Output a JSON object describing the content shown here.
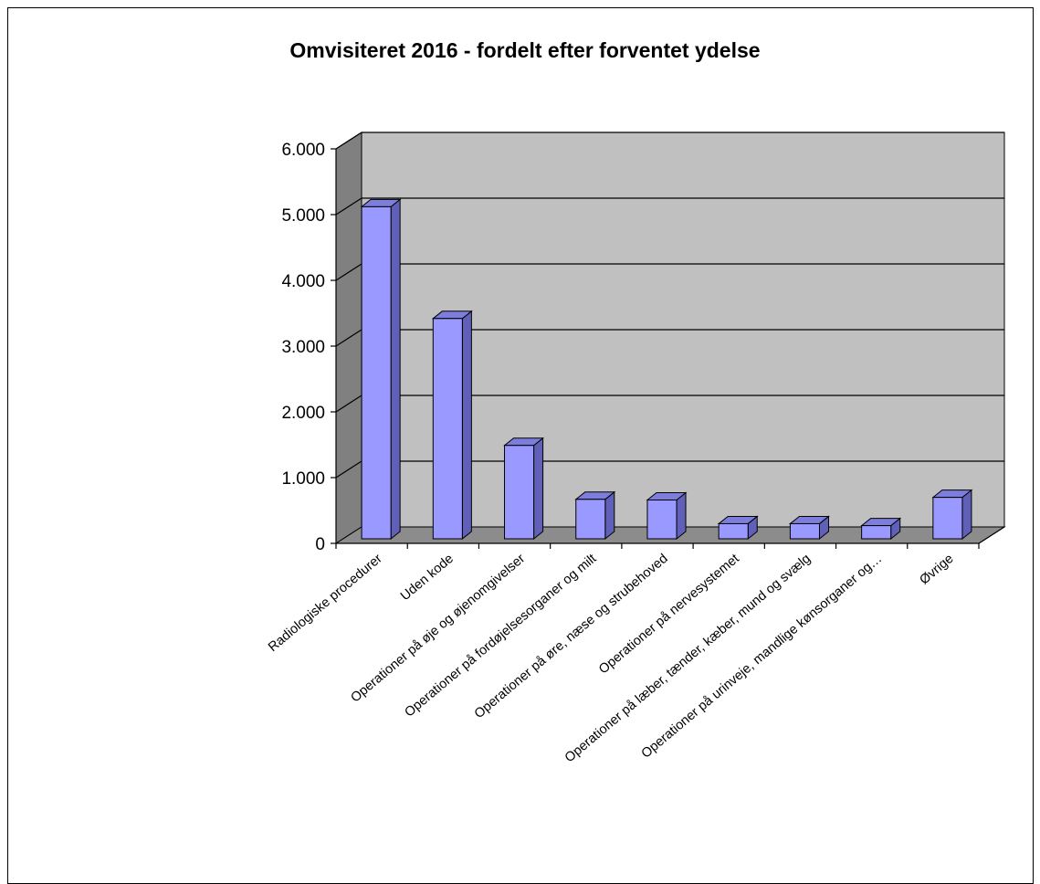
{
  "chart_data": {
    "type": "bar",
    "title": "Omvisiteret 2016 - fordelt efter forventet ydelse",
    "xlabel": "",
    "ylabel": "",
    "categories": [
      "Radiologiske procedurer",
      "Uden kode",
      "Operationer på øje og øjenomgivelser",
      "Operationer på fordøjelsesorganer og milt",
      "Operationer på øre, næse og strubehoved",
      "Operationer på nervesystemet",
      "Operationer på læber, tænder, kæber, mund og svælg",
      "Operationer på urinveje, mandlige kønsorganer og…",
      "Øvrige"
    ],
    "values": [
      5050,
      3350,
      1420,
      600,
      590,
      230,
      230,
      200,
      630
    ],
    "ylim": [
      0,
      6000
    ],
    "yticks": [
      0,
      1000,
      2000,
      3000,
      4000,
      5000,
      6000
    ],
    "ytick_labels": [
      "0",
      "1.000",
      "2.000",
      "3.000",
      "4.000",
      "5.000",
      "6.000"
    ],
    "grid": true,
    "legend": "none",
    "colors": {
      "bar_front": "#9999ff",
      "bar_side": "#6060b8",
      "bar_top": "#7d7ddc",
      "back_wall": "#c0c0c0",
      "side_wall": "#808080",
      "floor": "#8c8c8c"
    }
  }
}
